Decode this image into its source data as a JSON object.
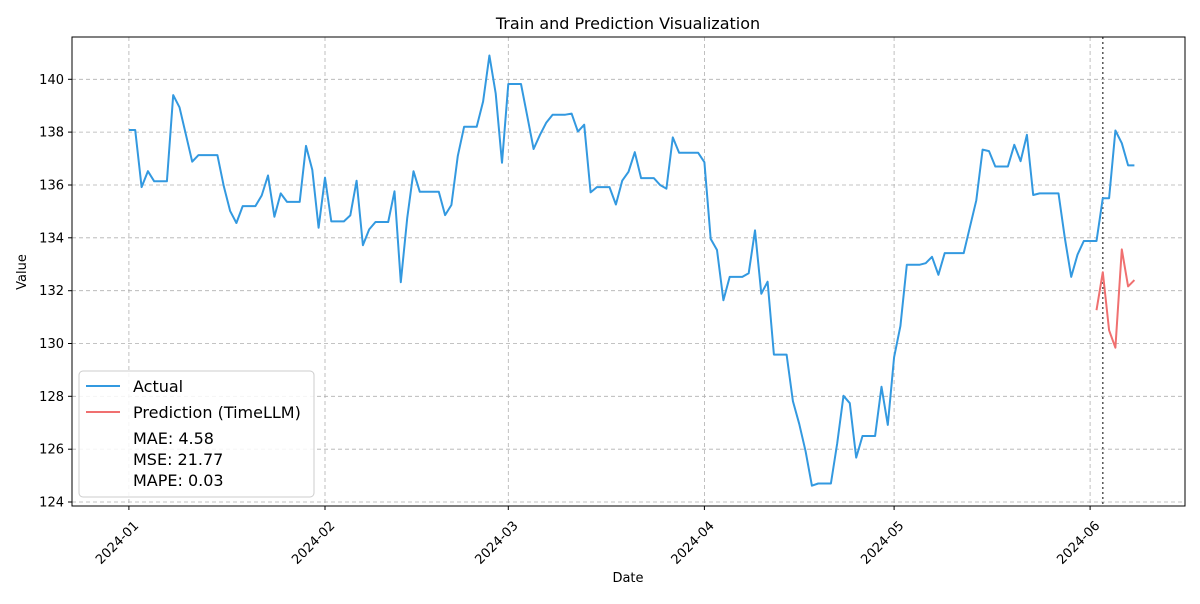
{
  "chart_data": {
    "type": "line",
    "title": "Train and Prediction Visualization",
    "xlabel": "Date",
    "ylabel": "Value",
    "x_ticks": [
      "2024-01-01",
      "2024-02-01",
      "2024-03-01",
      "2024-04-01",
      "2024-05-01",
      "2024-06-01"
    ],
    "x_tick_labels": [
      "2024-01",
      "2024-02",
      "2024-03",
      "2024-04",
      "2024-05",
      "2024-06"
    ],
    "y_ticks": [
      124,
      126,
      128,
      130,
      132,
      134,
      136,
      138,
      140
    ],
    "xlim": [
      "2023-12-23",
      "2024-06-16"
    ],
    "ylim": [
      123.85,
      141.6
    ],
    "grid": true,
    "legend_position": "lower-left",
    "marker_date": "2024-06-03",
    "series": [
      {
        "name": "Actual",
        "color": "#3399e0",
        "points": [
          [
            "2024-01-01",
            138.08
          ],
          [
            "2024-01-02",
            138.08
          ],
          [
            "2024-01-03",
            135.92
          ],
          [
            "2024-01-04",
            136.52
          ],
          [
            "2024-01-05",
            136.14
          ],
          [
            "2024-01-07",
            136.14
          ],
          [
            "2024-01-08",
            139.4
          ],
          [
            "2024-01-09",
            138.94
          ],
          [
            "2024-01-10",
            137.92
          ],
          [
            "2024-01-11",
            136.88
          ],
          [
            "2024-01-12",
            137.13
          ],
          [
            "2024-01-15",
            137.13
          ],
          [
            "2024-01-16",
            135.95
          ],
          [
            "2024-01-17",
            135.02
          ],
          [
            "2024-01-18",
            134.56
          ],
          [
            "2024-01-19",
            135.2
          ],
          [
            "2024-01-21",
            135.2
          ],
          [
            "2024-01-22",
            135.6
          ],
          [
            "2024-01-23",
            136.36
          ],
          [
            "2024-01-24",
            134.8
          ],
          [
            "2024-01-25",
            135.68
          ],
          [
            "2024-01-26",
            135.36
          ],
          [
            "2024-01-28",
            135.36
          ],
          [
            "2024-01-29",
            137.48
          ],
          [
            "2024-01-30",
            136.57
          ],
          [
            "2024-01-31",
            134.38
          ],
          [
            "2024-02-01",
            136.28
          ],
          [
            "2024-02-02",
            134.62
          ],
          [
            "2024-02-04",
            134.62
          ],
          [
            "2024-02-05",
            134.85
          ],
          [
            "2024-02-06",
            136.16
          ],
          [
            "2024-02-07",
            133.72
          ],
          [
            "2024-02-08",
            134.32
          ],
          [
            "2024-02-09",
            134.6
          ],
          [
            "2024-02-11",
            134.6
          ],
          [
            "2024-02-12",
            135.76
          ],
          [
            "2024-02-13",
            132.32
          ],
          [
            "2024-02-14",
            134.74
          ],
          [
            "2024-02-15",
            136.52
          ],
          [
            "2024-02-16",
            135.74
          ],
          [
            "2024-02-19",
            135.74
          ],
          [
            "2024-02-20",
            134.86
          ],
          [
            "2024-02-21",
            135.24
          ],
          [
            "2024-02-22",
            137.1
          ],
          [
            "2024-02-23",
            138.2
          ],
          [
            "2024-02-25",
            138.2
          ],
          [
            "2024-02-26",
            139.16
          ],
          [
            "2024-02-27",
            140.9
          ],
          [
            "2024-02-28",
            139.46
          ],
          [
            "2024-02-29",
            136.84
          ],
          [
            "2024-03-01",
            139.82
          ],
          [
            "2024-03-03",
            139.82
          ],
          [
            "2024-03-04",
            138.6
          ],
          [
            "2024-03-05",
            137.36
          ],
          [
            "2024-03-06",
            137.9
          ],
          [
            "2024-03-07",
            138.36
          ],
          [
            "2024-03-08",
            138.66
          ],
          [
            "2024-03-10",
            138.66
          ],
          [
            "2024-03-11",
            138.7
          ],
          [
            "2024-03-12",
            138.02
          ],
          [
            "2024-03-13",
            138.28
          ],
          [
            "2024-03-14",
            135.72
          ],
          [
            "2024-03-15",
            135.92
          ],
          [
            "2024-03-17",
            135.92
          ],
          [
            "2024-03-18",
            135.26
          ],
          [
            "2024-03-19",
            136.16
          ],
          [
            "2024-03-20",
            136.5
          ],
          [
            "2024-03-21",
            137.24
          ],
          [
            "2024-03-22",
            136.26
          ],
          [
            "2024-03-24",
            136.26
          ],
          [
            "2024-03-25",
            136.0
          ],
          [
            "2024-03-26",
            135.86
          ],
          [
            "2024-03-27",
            137.8
          ],
          [
            "2024-03-28",
            137.22
          ],
          [
            "2024-03-31",
            137.22
          ],
          [
            "2024-04-01",
            136.86
          ],
          [
            "2024-04-02",
            133.96
          ],
          [
            "2024-04-03",
            133.54
          ],
          [
            "2024-04-04",
            131.64
          ],
          [
            "2024-04-05",
            132.52
          ],
          [
            "2024-04-07",
            132.52
          ],
          [
            "2024-04-08",
            132.66
          ],
          [
            "2024-04-09",
            134.28
          ],
          [
            "2024-04-10",
            131.88
          ],
          [
            "2024-04-11",
            132.34
          ],
          [
            "2024-04-12",
            129.58
          ],
          [
            "2024-04-14",
            129.58
          ],
          [
            "2024-04-15",
            127.82
          ],
          [
            "2024-04-16",
            126.96
          ],
          [
            "2024-04-17",
            125.92
          ],
          [
            "2024-04-18",
            124.62
          ],
          [
            "2024-04-19",
            124.7
          ],
          [
            "2024-04-21",
            124.7
          ],
          [
            "2024-04-22",
            126.22
          ],
          [
            "2024-04-23",
            128.02
          ],
          [
            "2024-04-24",
            127.74
          ],
          [
            "2024-04-25",
            125.68
          ],
          [
            "2024-04-26",
            126.5
          ],
          [
            "2024-04-28",
            126.5
          ],
          [
            "2024-04-29",
            128.36
          ],
          [
            "2024-04-30",
            126.92
          ],
          [
            "2024-05-01",
            129.48
          ],
          [
            "2024-05-02",
            130.66
          ],
          [
            "2024-05-03",
            132.98
          ],
          [
            "2024-05-05",
            132.98
          ],
          [
            "2024-05-06",
            133.04
          ],
          [
            "2024-05-07",
            133.28
          ],
          [
            "2024-05-08",
            132.6
          ],
          [
            "2024-05-09",
            133.42
          ],
          [
            "2024-05-12",
            133.42
          ],
          [
            "2024-05-13",
            134.42
          ],
          [
            "2024-05-14",
            135.42
          ],
          [
            "2024-05-15",
            137.34
          ],
          [
            "2024-05-16",
            137.28
          ],
          [
            "2024-05-17",
            136.7
          ],
          [
            "2024-05-19",
            136.7
          ],
          [
            "2024-05-20",
            137.52
          ],
          [
            "2024-05-21",
            136.9
          ],
          [
            "2024-05-22",
            137.9
          ],
          [
            "2024-05-23",
            135.62
          ],
          [
            "2024-05-24",
            135.68
          ],
          [
            "2024-05-27",
            135.68
          ],
          [
            "2024-05-28",
            134.0
          ],
          [
            "2024-05-29",
            132.52
          ],
          [
            "2024-05-30",
            133.36
          ],
          [
            "2024-05-31",
            133.88
          ],
          [
            "2024-06-02",
            133.88
          ],
          [
            "2024-06-03",
            135.5
          ],
          [
            "2024-06-04",
            135.5
          ],
          [
            "2024-06-05",
            138.06
          ],
          [
            "2024-06-06",
            137.58
          ],
          [
            "2024-06-07",
            136.74
          ],
          [
            "2024-06-08",
            136.74
          ]
        ]
      },
      {
        "name": "Prediction (TimeLLM)",
        "color": "#f07070",
        "points": [
          [
            "2024-06-02",
            131.26
          ],
          [
            "2024-06-03",
            132.7
          ],
          [
            "2024-06-04",
            130.5
          ],
          [
            "2024-06-05",
            129.84
          ],
          [
            "2024-06-06",
            133.56
          ],
          [
            "2024-06-07",
            132.16
          ],
          [
            "2024-06-08",
            132.4
          ]
        ]
      }
    ],
    "metrics": [
      "MAE: 4.58",
      "MSE: 21.77",
      "MAPE: 0.03"
    ]
  }
}
